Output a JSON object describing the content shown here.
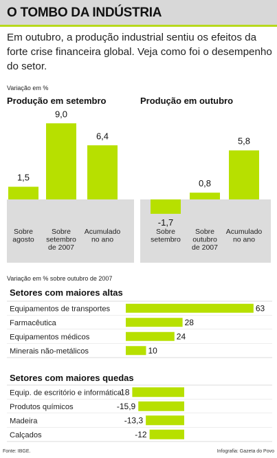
{
  "title": "O TOMBO DA INDÚSTRIA",
  "intro": "Em outubro, a produção industrial sentiu os efeitos da forte crise financeira global. Veja como foi o desempenho do setor.",
  "top_note": "Variação em %",
  "bottom_note": "Variação em % sobre outubro de 2007",
  "footer": {
    "source": "Fonte: IBGE.",
    "credit": "Infografia: Gazeta do Povo"
  },
  "colors": {
    "accent": "#b7e000",
    "panel": "#dcdcdc",
    "title_bar": "#d8d8d8"
  },
  "chart_data": [
    {
      "type": "bar",
      "title": "Produção em setembro",
      "categories": [
        "Sobre agosto",
        "Sobre setembro de 2007",
        "Acumulado no ano"
      ],
      "category_lines": [
        [
          "Sobre",
          "agosto"
        ],
        [
          "Sobre",
          "setembro",
          "de 2007"
        ],
        [
          "Acumulado",
          "no ano"
        ]
      ],
      "values": [
        1.5,
        9.0,
        6.4
      ],
      "value_labels": [
        "1,5",
        "9,0",
        "6,4"
      ],
      "ylabel": "Variação em %"
    },
    {
      "type": "bar",
      "title": "Produção em outubro",
      "categories": [
        "Sobre setembro",
        "Sobre outubro de 2007",
        "Acumulado no ano"
      ],
      "category_lines": [
        [
          "Sobre",
          "setembro"
        ],
        [
          "Sobre",
          "outubro",
          "de 2007"
        ],
        [
          "Acumulado",
          "no ano"
        ]
      ],
      "values": [
        -1.7,
        0.8,
        5.8
      ],
      "value_labels": [
        "-1,7",
        "0,8",
        "5,8"
      ],
      "ylabel": "Variação em %"
    },
    {
      "type": "bar",
      "title": "Setores com maiores altas",
      "categories": [
        "Equipamentos de transportes",
        "Farmacêutica",
        "Equipamentos médicos",
        "Minerais não-metálicos"
      ],
      "values": [
        63,
        28,
        24,
        10
      ],
      "value_labels": [
        "63",
        "28",
        "24",
        "10"
      ]
    },
    {
      "type": "bar",
      "title": "Setores com maiores quedas",
      "categories": [
        "Equip. de escritório e informática",
        "Produtos químicos",
        "Madeira",
        "Calçados"
      ],
      "values": [
        -18,
        -15.9,
        -13.3,
        -12
      ],
      "value_labels": [
        "-18",
        "-15,9",
        "-13,3",
        "-12"
      ]
    }
  ]
}
